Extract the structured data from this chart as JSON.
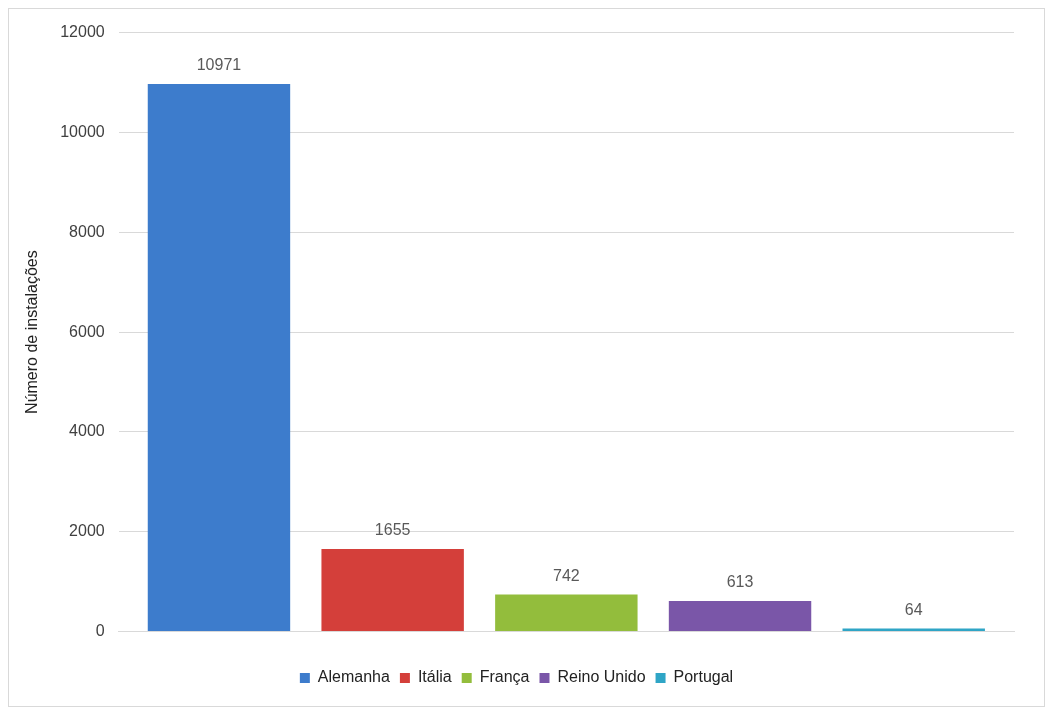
{
  "chart_data": {
    "type": "bar",
    "ylabel": "Número de instalações",
    "categories": [
      null
    ],
    "series": [
      {
        "name": "Alemanha",
        "color": "#3d7ccc",
        "values": [
          10971
        ]
      },
      {
        "name": "Itália",
        "color": "#d43f3a",
        "values": [
          1655
        ]
      },
      {
        "name": "França",
        "color": "#93bd3c",
        "values": [
          742
        ]
      },
      {
        "name": "Reino Unido",
        "color": "#7a56a8",
        "values": [
          613
        ]
      },
      {
        "name": "Portugal",
        "color": "#2fa5c6",
        "values": [
          64
        ]
      }
    ],
    "ylim": [
      0,
      12000
    ],
    "yticks": [
      0,
      2000,
      4000,
      6000,
      8000,
      10000,
      12000
    ],
    "grid": "y",
    "legend": "bottom",
    "data_labels": true
  }
}
